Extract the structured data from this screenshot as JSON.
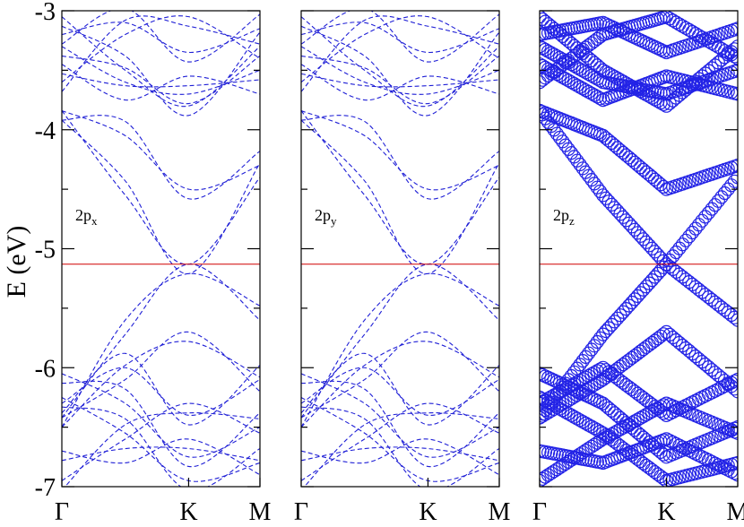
{
  "chart_data": {
    "type": "line",
    "ylabel": "E  (eV)",
    "ylim": [
      -7,
      -3
    ],
    "yticks": [
      "-3",
      "-4",
      "-5",
      "-6",
      "-7"
    ],
    "xticks": [
      "Γ",
      "K",
      "M"
    ],
    "fermi_level": -5.13,
    "fermi_color": "#d00000",
    "band_color": "#1f1fd6",
    "panels": [
      {
        "label_main": "2p",
        "label_sub": "x",
        "style": "dashed"
      },
      {
        "label_main": "2p",
        "label_sub": "y",
        "style": "dashed"
      },
      {
        "label_main": "2p",
        "label_sub": "z",
        "style": "circles"
      }
    ],
    "bands": [
      {
        "name": "",
        "values": [
          -3.84,
          -4.55,
          -5.13,
          -4.4
        ]
      },
      {
        "name": "",
        "values": [
          -6.42,
          -5.72,
          -5.13,
          -5.6
        ]
      },
      {
        "name": "",
        "values": [
          -3.84,
          -4.05,
          -4.5,
          -4.3
        ]
      },
      {
        "name": "",
        "values": [
          -6.42,
          -6.1,
          -5.7,
          -6.2
        ]
      },
      {
        "name": "",
        "values": [
          -3.6,
          -3.2,
          -3.05,
          -3.4
        ]
      },
      {
        "name": "",
        "values": [
          -6.05,
          -6.3,
          -6.75,
          -6.5
        ]
      },
      {
        "name": "",
        "values": [
          -3.45,
          -3.75,
          -3.55,
          -3.7
        ]
      },
      {
        "name": "",
        "values": [
          -6.25,
          -6.55,
          -6.95,
          -6.8
        ]
      },
      {
        "name": "",
        "values": [
          -3.3,
          -3.6,
          -3.7,
          -3.5
        ]
      },
      {
        "name": "",
        "values": [
          -6.7,
          -6.8,
          -6.6,
          -6.9
        ]
      },
      {
        "name": "",
        "values": [
          -3.05,
          -3.5,
          -3.8,
          -3.3
        ]
      },
      {
        "name": "",
        "values": [
          -6.3,
          -6.0,
          -6.4,
          -6.1
        ]
      },
      {
        "name": "",
        "values": [
          -3.2,
          -3.1,
          -3.35,
          -3.15
        ]
      },
      {
        "name": "",
        "values": [
          -6.95,
          -6.6,
          -6.3,
          -6.55
        ]
      }
    ]
  }
}
